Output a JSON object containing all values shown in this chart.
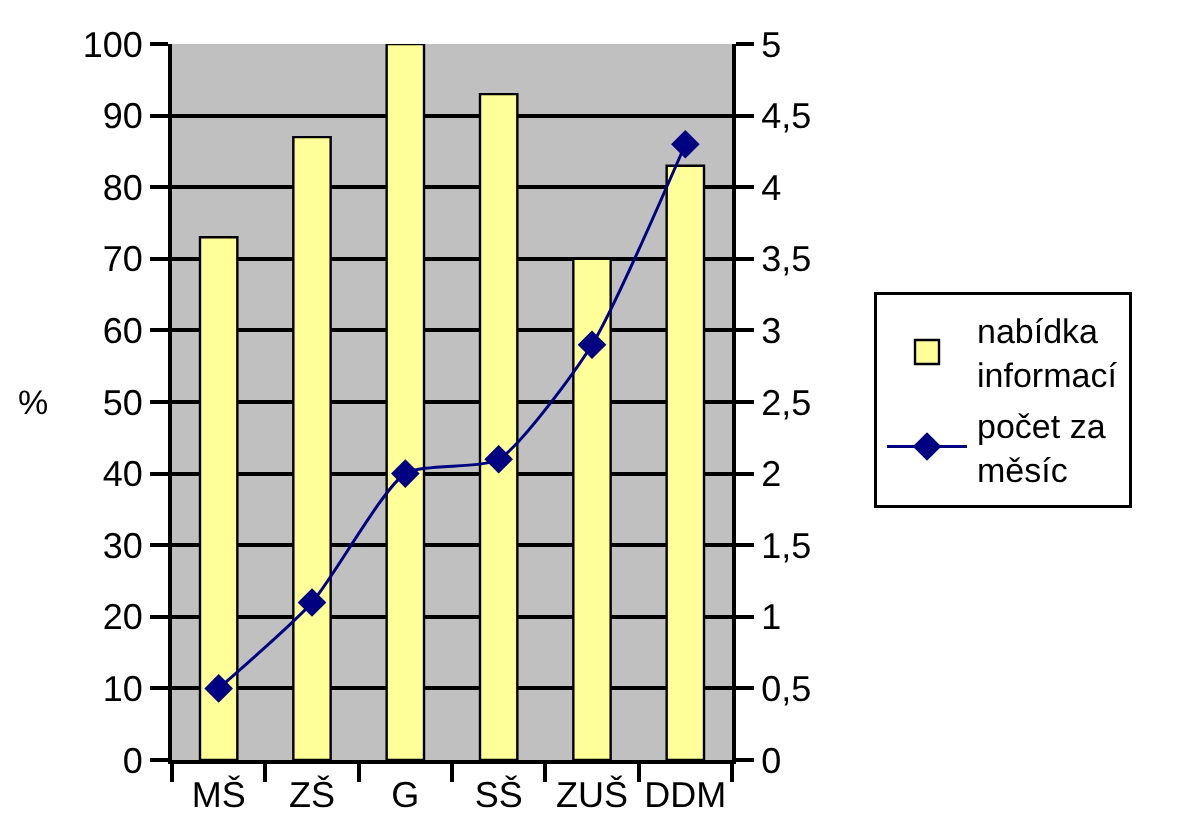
{
  "chart_data": {
    "type": "bar",
    "ylabel": "%",
    "categories": [
      "MŠ",
      "ZŠ",
      "G",
      "SŠ",
      "ZUŠ",
      "DDM"
    ],
    "series": [
      {
        "name": "nabídka informací",
        "color": "#ffff99",
        "values": [
          73,
          87,
          100,
          93,
          70,
          83
        ]
      },
      {
        "name": "počet za měsíc",
        "type": "line",
        "axis": "y2",
        "color": "#000080",
        "values": [
          0.5,
          1.1,
          2.0,
          2.1,
          2.9,
          4.3
        ]
      }
    ],
    "ylim": [
      0,
      100
    ],
    "yticks": [
      0,
      10,
      20,
      30,
      40,
      50,
      60,
      70,
      80,
      90,
      100
    ],
    "y2lim": [
      0,
      5
    ],
    "y2ticks": [
      0,
      {
        "value": 0.5,
        "label": "0,5"
      },
      1,
      {
        "value": 1.5,
        "label": "1,5"
      },
      2,
      {
        "value": 2.5,
        "label": "2,5"
      },
      3,
      {
        "value": 3.5,
        "label": "3,5"
      },
      4,
      {
        "value": 4.5,
        "label": "4,5"
      },
      5
    ],
    "grid": "y",
    "legend": "right",
    "marker": "diamond"
  }
}
